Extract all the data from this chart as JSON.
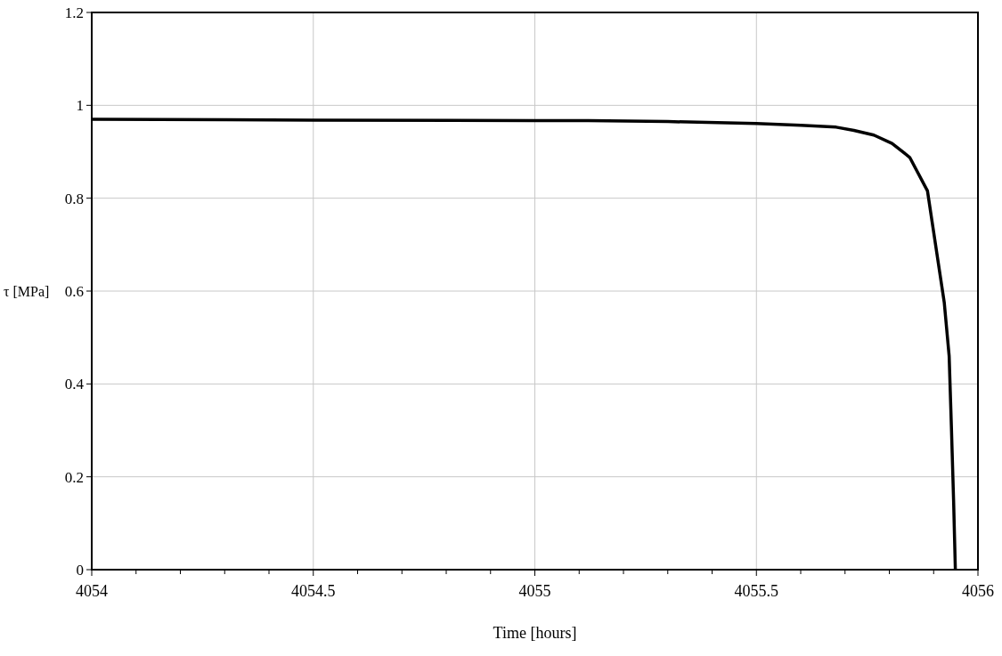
{
  "chart_data": {
    "type": "line",
    "xlabel": "Time [hours]",
    "ylabel": "τ [MPa]",
    "series": [
      {
        "color": "#000000",
        "x": [
          4054,
          4054.3,
          4054.5,
          4055,
          4055.12,
          4055.3,
          4055.5,
          4055.6,
          4055.68,
          4055.72,
          4055.765,
          4055.806,
          4055.846,
          4055.886,
          4055.924,
          4055.935,
          4055.94,
          4055.945,
          4055.949
        ],
        "values": [
          0.97,
          0.969,
          0.968,
          0.967,
          0.967,
          0.965,
          0.961,
          0.957,
          0.953,
          0.946,
          0.936,
          0.918,
          0.888,
          0.816,
          0.575,
          0.46,
          0.31,
          0.15,
          0
        ]
      }
    ],
    "xlim": [
      4054,
      4056
    ],
    "xticks": [
      4054,
      4054.5,
      4055,
      4055.5,
      4056
    ],
    "ylim": [
      0,
      1.2
    ],
    "yticks": [
      0,
      0.2,
      0.4,
      0.6,
      0.8,
      1,
      1.2
    ],
    "grid": true,
    "marker": "none",
    "line_style": "solid"
  }
}
